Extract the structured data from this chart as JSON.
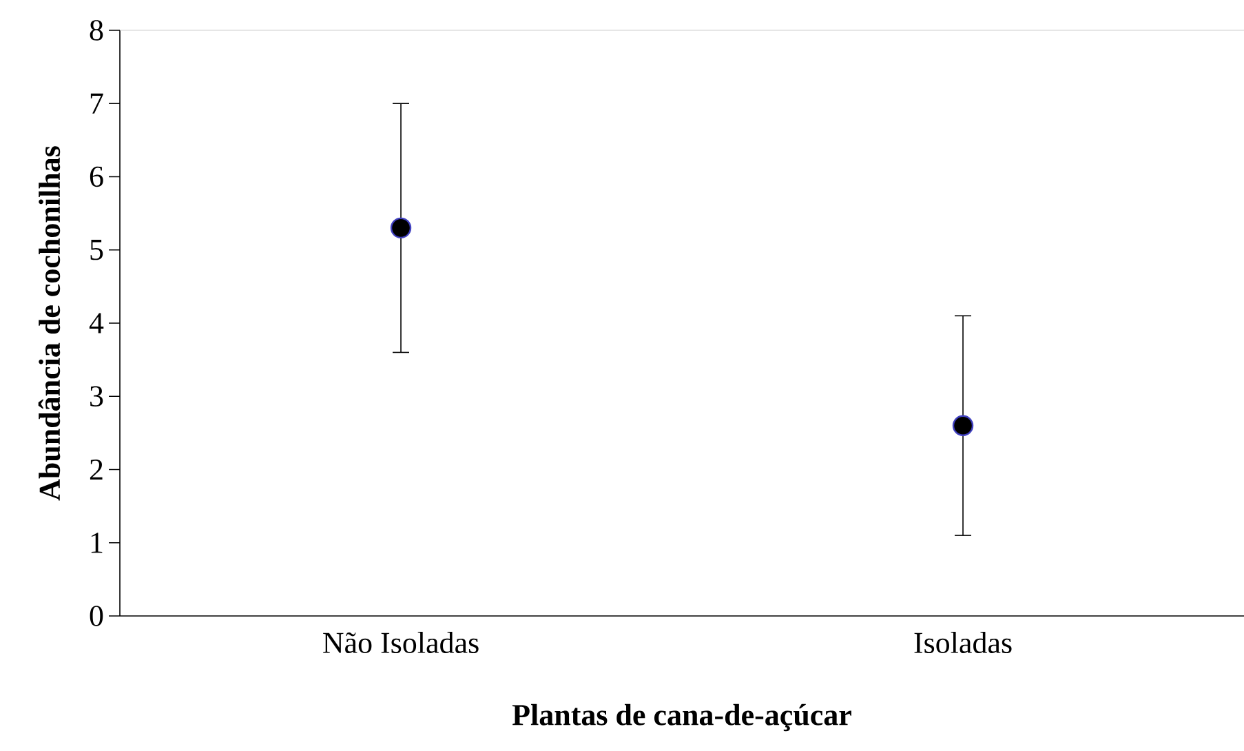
{
  "chart_data": {
    "type": "scatter",
    "xlabel": "Plantas de cana-de-açúcar",
    "ylabel": "Abundância de cochonilhas",
    "categories": [
      "Não Isoladas",
      "Isoladas"
    ],
    "series": [
      {
        "color": "#000000",
        "values": [
          5.3,
          2.6
        ],
        "errors": [
          [
            3.6,
            7.0
          ],
          [
            1.1,
            4.1
          ]
        ]
      }
    ],
    "marker": "circle",
    "ylim": [
      0,
      8
    ],
    "yticks": [
      0,
      1,
      2,
      3,
      4,
      5,
      6,
      7,
      8
    ]
  }
}
